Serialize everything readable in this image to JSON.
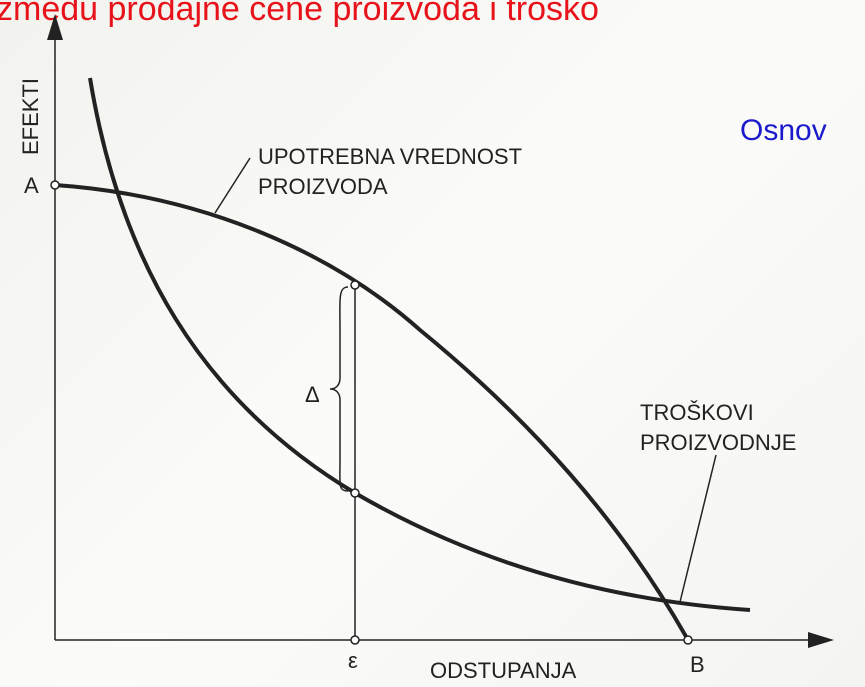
{
  "title": "zmeđu prodajne cene proizvoda i troško",
  "side_text": "Osnov",
  "axes": {
    "y_label": "EFEKTI",
    "x_label": "ODSTUPANJA"
  },
  "points": {
    "a": "A",
    "b": "B",
    "epsilon": "ε",
    "delta": "Δ"
  },
  "curves": {
    "use_value": [
      "UPOTREBNA VREDNOST",
      "PROIZVODA"
    ],
    "costs": [
      "TROŠKOVI",
      "PROIZVODNJE"
    ]
  }
}
